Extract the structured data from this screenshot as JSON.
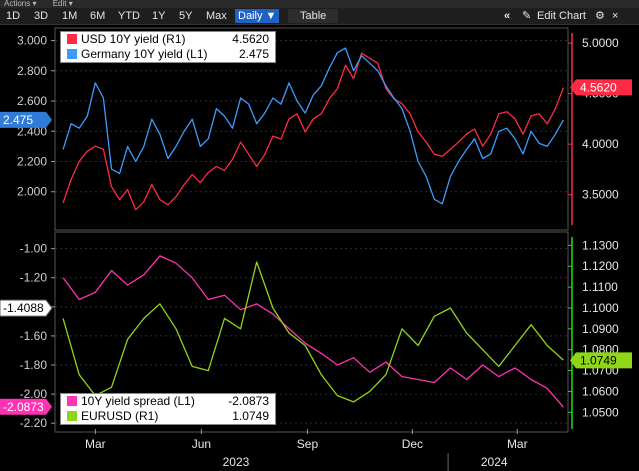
{
  "menubar": {
    "actions": "Actions ▾",
    "edit": "Edit ▾"
  },
  "toolbar": {
    "ranges": [
      "1D",
      "3D",
      "1M",
      "6M",
      "YTD",
      "1Y",
      "5Y",
      "Max"
    ],
    "interval": "Daily ▼",
    "table": "Table",
    "collapse_icon": "«",
    "edit_chart": "Edit Chart",
    "settings_icon": "gear-icon",
    "close_icon": "×"
  },
  "colors": {
    "usd": "#ff2a44",
    "germany": "#3c9cff",
    "spread": "#ff33b3",
    "eurusd": "#8fd616",
    "left_axis": "#cfcfcf",
    "right_axis_top": "#ff2a44",
    "right_axis_bottom": "#22dd22"
  },
  "chart_data": [
    {
      "type": "line",
      "legend": [
        {
          "name": "USD 10Y yield (R1)",
          "value": "4.5620"
        },
        {
          "name": "Germany 10Y yield (L1)",
          "value": "2.475"
        }
      ],
      "left_axis": {
        "ticks": [
          "2.000",
          "2.200",
          "2.400",
          "2.600",
          "2.800",
          "3.000"
        ],
        "range": [
          1.78,
          3.05
        ]
      },
      "right_axis": {
        "ticks": [
          "3.5000",
          "4.0000",
          "4.5000",
          "5.0000"
        ],
        "range": [
          3.2,
          5.1
        ]
      },
      "current_labels": {
        "left": "2.475",
        "right": "4.5620"
      },
      "series": [
        {
          "name": "USD 10Y yield",
          "axis": "right",
          "x": [
            "2023-02-01",
            "2023-02-08",
            "2023-02-15",
            "2023-02-22",
            "2023-03-01",
            "2023-03-08",
            "2023-03-15",
            "2023-03-22",
            "2023-03-29",
            "2023-04-05",
            "2023-04-12",
            "2023-04-19",
            "2023-04-26",
            "2023-05-03",
            "2023-05-10",
            "2023-05-17",
            "2023-05-24",
            "2023-05-31",
            "2023-06-07",
            "2023-06-14",
            "2023-06-21",
            "2023-06-28",
            "2023-07-05",
            "2023-07-12",
            "2023-07-19",
            "2023-07-26",
            "2023-08-02",
            "2023-08-09",
            "2023-08-16",
            "2023-08-23",
            "2023-08-30",
            "2023-09-06",
            "2023-09-13",
            "2023-09-20",
            "2023-09-27",
            "2023-10-04",
            "2023-10-11",
            "2023-10-18",
            "2023-10-25",
            "2023-11-01",
            "2023-11-08",
            "2023-11-15",
            "2023-11-22",
            "2023-11-29",
            "2023-12-06",
            "2023-12-13",
            "2023-12-20",
            "2023-12-27",
            "2024-01-03",
            "2024-01-10",
            "2024-01-17",
            "2024-01-24",
            "2024-01-31",
            "2024-02-07",
            "2024-02-14",
            "2024-02-21",
            "2024-02-28",
            "2024-03-06",
            "2024-03-13",
            "2024-03-20",
            "2024-03-27",
            "2024-04-03",
            "2024-04-10"
          ],
          "values": [
            3.42,
            3.65,
            3.83,
            3.93,
            3.98,
            3.95,
            3.58,
            3.45,
            3.55,
            3.35,
            3.43,
            3.6,
            3.45,
            3.4,
            3.48,
            3.6,
            3.7,
            3.62,
            3.72,
            3.78,
            3.74,
            3.85,
            4.02,
            3.9,
            3.78,
            3.9,
            4.08,
            4.05,
            4.25,
            4.3,
            4.12,
            4.25,
            4.3,
            4.45,
            4.55,
            4.78,
            4.65,
            4.9,
            4.85,
            4.8,
            4.55,
            4.45,
            4.4,
            4.3,
            4.12,
            4.02,
            3.9,
            3.88,
            3.95,
            4.02,
            4.1,
            4.15,
            3.98,
            4.1,
            4.3,
            4.32,
            4.25,
            4.1,
            4.28,
            4.3,
            4.2,
            4.35,
            4.56
          ]
        },
        {
          "name": "Germany 10Y yield",
          "axis": "left",
          "x": [
            "2023-02-01",
            "2023-02-08",
            "2023-02-15",
            "2023-02-22",
            "2023-03-01",
            "2023-03-08",
            "2023-03-15",
            "2023-03-22",
            "2023-03-29",
            "2023-04-05",
            "2023-04-12",
            "2023-04-19",
            "2023-04-26",
            "2023-05-03",
            "2023-05-10",
            "2023-05-17",
            "2023-05-24",
            "2023-05-31",
            "2023-06-07",
            "2023-06-14",
            "2023-06-21",
            "2023-06-28",
            "2023-07-05",
            "2023-07-12",
            "2023-07-19",
            "2023-07-26",
            "2023-08-02",
            "2023-08-09",
            "2023-08-16",
            "2023-08-23",
            "2023-08-30",
            "2023-09-06",
            "2023-09-13",
            "2023-09-20",
            "2023-09-27",
            "2023-10-04",
            "2023-10-11",
            "2023-10-18",
            "2023-10-25",
            "2023-11-01",
            "2023-11-08",
            "2023-11-15",
            "2023-11-22",
            "2023-11-29",
            "2023-12-06",
            "2023-12-13",
            "2023-12-20",
            "2023-12-27",
            "2024-01-03",
            "2024-01-10",
            "2024-01-17",
            "2024-01-24",
            "2024-01-31",
            "2024-02-07",
            "2024-02-14",
            "2024-02-21",
            "2024-02-28",
            "2024-03-06",
            "2024-03-13",
            "2024-03-20",
            "2024-03-27",
            "2024-04-03",
            "2024-04-10"
          ],
          "values": [
            2.28,
            2.45,
            2.42,
            2.5,
            2.72,
            2.62,
            2.15,
            2.12,
            2.3,
            2.2,
            2.3,
            2.48,
            2.38,
            2.22,
            2.3,
            2.4,
            2.48,
            2.3,
            2.35,
            2.55,
            2.5,
            2.42,
            2.62,
            2.58,
            2.45,
            2.52,
            2.62,
            2.58,
            2.72,
            2.6,
            2.52,
            2.64,
            2.7,
            2.82,
            2.92,
            2.95,
            2.8,
            2.9,
            2.85,
            2.8,
            2.7,
            2.62,
            2.55,
            2.4,
            2.2,
            2.1,
            1.95,
            1.92,
            2.1,
            2.2,
            2.28,
            2.35,
            2.22,
            2.25,
            2.4,
            2.42,
            2.35,
            2.25,
            2.4,
            2.32,
            2.3,
            2.38,
            2.475
          ]
        }
      ]
    },
    {
      "type": "line",
      "legend": [
        {
          "name": "10Y yield spread (L1)",
          "value": "-2.0873"
        },
        {
          "name": "EURUSD (R1)",
          "value": "1.0749"
        }
      ],
      "left_axis": {
        "ticks": [
          "-2.20",
          "-2.00",
          "-1.80",
          "-1.60",
          "-1.40",
          "-1.20",
          "-1.00"
        ],
        "range": [
          -2.24,
          -0.92
        ]
      },
      "right_axis": {
        "ticks": [
          "1.0500",
          "1.0600",
          "1.0700",
          "1.0800",
          "1.0900",
          "1.1000",
          "1.1100",
          "1.1200",
          "1.1300"
        ],
        "range": [
          1.042,
          1.134
        ]
      },
      "current_labels": {
        "left": "-1.4088",
        "left_current": "-2.0873",
        "right": "1.0749"
      },
      "series": [
        {
          "name": "10Y yield spread",
          "axis": "left",
          "x": [
            "2023-02-01",
            "2023-02-15",
            "2023-03-01",
            "2023-03-15",
            "2023-03-29",
            "2023-04-12",
            "2023-04-26",
            "2023-05-10",
            "2023-05-24",
            "2023-06-07",
            "2023-06-21",
            "2023-07-05",
            "2023-07-19",
            "2023-08-02",
            "2023-08-16",
            "2023-08-30",
            "2023-09-13",
            "2023-09-27",
            "2023-10-11",
            "2023-10-25",
            "2023-11-08",
            "2023-11-22",
            "2023-12-06",
            "2023-12-20",
            "2024-01-03",
            "2024-01-17",
            "2024-01-31",
            "2024-02-14",
            "2024-02-28",
            "2024-03-13",
            "2024-03-27",
            "2024-04-10"
          ],
          "values": [
            -1.2,
            -1.35,
            -1.3,
            -1.15,
            -1.25,
            -1.18,
            -1.05,
            -1.1,
            -1.2,
            -1.35,
            -1.32,
            -1.42,
            -1.38,
            -1.45,
            -1.55,
            -1.65,
            -1.72,
            -1.8,
            -1.75,
            -1.85,
            -1.78,
            -1.88,
            -1.9,
            -1.92,
            -1.82,
            -1.9,
            -1.8,
            -1.88,
            -1.82,
            -1.9,
            -1.96,
            -2.09
          ]
        },
        {
          "name": "EURUSD",
          "axis": "right",
          "x": [
            "2023-02-01",
            "2023-02-15",
            "2023-03-01",
            "2023-03-15",
            "2023-03-29",
            "2023-04-12",
            "2023-04-26",
            "2023-05-10",
            "2023-05-24",
            "2023-06-07",
            "2023-06-21",
            "2023-07-05",
            "2023-07-19",
            "2023-08-02",
            "2023-08-16",
            "2023-08-30",
            "2023-09-13",
            "2023-09-27",
            "2023-10-11",
            "2023-10-25",
            "2023-11-08",
            "2023-11-22",
            "2023-12-06",
            "2023-12-20",
            "2024-01-03",
            "2024-01-17",
            "2024-01-31",
            "2024-02-14",
            "2024-02-28",
            "2024-03-13",
            "2024-03-27",
            "2024-04-10"
          ],
          "values": [
            1.095,
            1.068,
            1.058,
            1.062,
            1.085,
            1.095,
            1.102,
            1.09,
            1.072,
            1.07,
            1.095,
            1.09,
            1.122,
            1.1,
            1.088,
            1.082,
            1.068,
            1.058,
            1.055,
            1.06,
            1.068,
            1.09,
            1.082,
            1.096,
            1.1,
            1.088,
            1.08,
            1.072,
            1.082,
            1.092,
            1.082,
            1.075
          ]
        }
      ]
    }
  ],
  "x_axis": {
    "months": [
      "Mar",
      "Jun",
      "Sep",
      "Dec",
      "Mar"
    ],
    "years": [
      "2023",
      "2024"
    ]
  }
}
